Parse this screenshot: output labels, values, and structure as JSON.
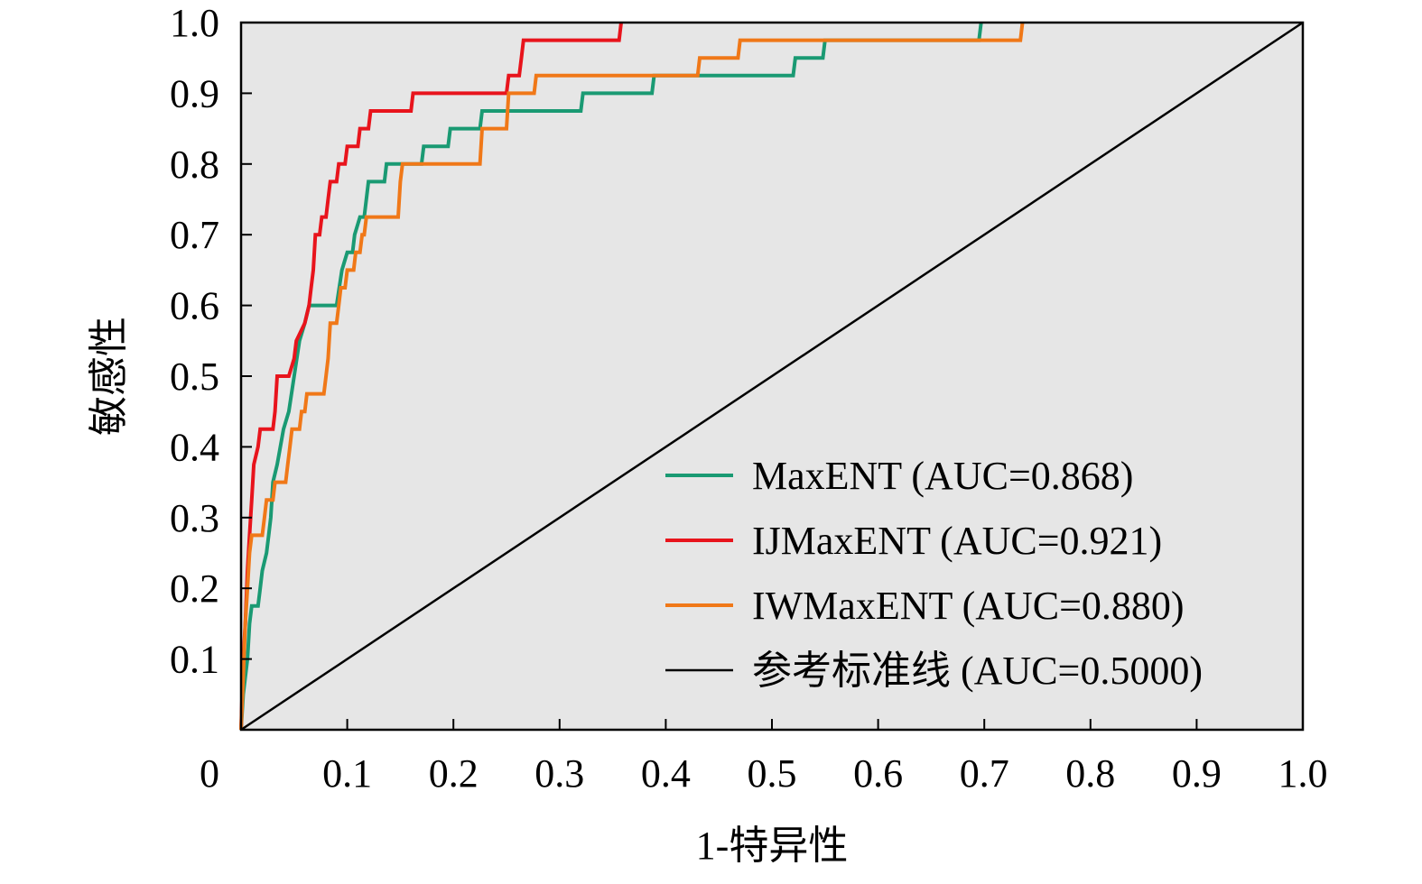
{
  "chart_data": {
    "type": "line",
    "title": "",
    "xlabel": "1-特异性",
    "ylabel": "敏感性",
    "xlim": [
      0,
      1.0
    ],
    "ylim": [
      0,
      1.0
    ],
    "plot_background": "#e6e6e6",
    "grid": false,
    "legend_position": "bottom-right",
    "x_ticks": [
      {
        "value": 0,
        "label": "0"
      },
      {
        "value": 0.1,
        "label": "0.1"
      },
      {
        "value": 0.2,
        "label": "0.2"
      },
      {
        "value": 0.3,
        "label": "0.3"
      },
      {
        "value": 0.4,
        "label": "0.4"
      },
      {
        "value": 0.5,
        "label": "0.5"
      },
      {
        "value": 0.6,
        "label": "0.6"
      },
      {
        "value": 0.7,
        "label": "0.7"
      },
      {
        "value": 0.8,
        "label": "0.8"
      },
      {
        "value": 0.9,
        "label": "0.9"
      },
      {
        "value": 1.0,
        "label": "1.0"
      }
    ],
    "y_ticks": [
      {
        "value": 0.1,
        "label": "0.1"
      },
      {
        "value": 0.2,
        "label": "0.2"
      },
      {
        "value": 0.3,
        "label": "0.3"
      },
      {
        "value": 0.4,
        "label": "0.4"
      },
      {
        "value": 0.5,
        "label": "0.5"
      },
      {
        "value": 0.6,
        "label": "0.6"
      },
      {
        "value": 0.7,
        "label": "0.7"
      },
      {
        "value": 0.8,
        "label": "0.8"
      },
      {
        "value": 0.9,
        "label": "0.9"
      },
      {
        "value": 1.0,
        "label": "1.0"
      }
    ],
    "series": [
      {
        "name": "MaxENT (AUC=0.868)",
        "color": "#1a9a73",
        "points": [
          [
            0,
            0
          ],
          [
            0.002,
            0.05
          ],
          [
            0.006,
            0.1
          ],
          [
            0.008,
            0.15
          ],
          [
            0.01,
            0.175
          ],
          [
            0.016,
            0.175
          ],
          [
            0.018,
            0.2
          ],
          [
            0.02,
            0.225
          ],
          [
            0.024,
            0.25
          ],
          [
            0.026,
            0.275
          ],
          [
            0.028,
            0.3
          ],
          [
            0.03,
            0.35
          ],
          [
            0.034,
            0.375
          ],
          [
            0.04,
            0.425
          ],
          [
            0.045,
            0.45
          ],
          [
            0.05,
            0.5
          ],
          [
            0.055,
            0.55
          ],
          [
            0.06,
            0.575
          ],
          [
            0.064,
            0.6
          ],
          [
            0.09,
            0.6
          ],
          [
            0.095,
            0.65
          ],
          [
            0.1,
            0.675
          ],
          [
            0.105,
            0.675
          ],
          [
            0.107,
            0.7
          ],
          [
            0.112,
            0.725
          ],
          [
            0.116,
            0.725
          ],
          [
            0.12,
            0.775
          ],
          [
            0.135,
            0.775
          ],
          [
            0.137,
            0.8
          ],
          [
            0.17,
            0.8
          ],
          [
            0.172,
            0.825
          ],
          [
            0.195,
            0.825
          ],
          [
            0.197,
            0.85
          ],
          [
            0.225,
            0.85
          ],
          [
            0.227,
            0.875
          ],
          [
            0.32,
            0.875
          ],
          [
            0.322,
            0.9
          ],
          [
            0.387,
            0.9
          ],
          [
            0.389,
            0.925
          ],
          [
            0.52,
            0.925
          ],
          [
            0.522,
            0.95
          ],
          [
            0.548,
            0.95
          ],
          [
            0.55,
            0.975
          ],
          [
            0.695,
            0.975
          ],
          [
            0.697,
            1.0
          ]
        ]
      },
      {
        "name": "IJMaxENT (AUC=0.921)",
        "color": "#e8141c",
        "points": [
          [
            0,
            0
          ],
          [
            0.002,
            0.1
          ],
          [
            0.004,
            0.15
          ],
          [
            0.006,
            0.225
          ],
          [
            0.008,
            0.275
          ],
          [
            0.01,
            0.325
          ],
          [
            0.012,
            0.375
          ],
          [
            0.016,
            0.4
          ],
          [
            0.018,
            0.425
          ],
          [
            0.03,
            0.425
          ],
          [
            0.032,
            0.45
          ],
          [
            0.034,
            0.5
          ],
          [
            0.045,
            0.5
          ],
          [
            0.05,
            0.525
          ],
          [
            0.052,
            0.55
          ],
          [
            0.06,
            0.575
          ],
          [
            0.064,
            0.6
          ],
          [
            0.066,
            0.625
          ],
          [
            0.068,
            0.65
          ],
          [
            0.07,
            0.7
          ],
          [
            0.074,
            0.7
          ],
          [
            0.076,
            0.725
          ],
          [
            0.08,
            0.725
          ],
          [
            0.082,
            0.75
          ],
          [
            0.084,
            0.775
          ],
          [
            0.09,
            0.775
          ],
          [
            0.092,
            0.8
          ],
          [
            0.098,
            0.8
          ],
          [
            0.1,
            0.825
          ],
          [
            0.11,
            0.825
          ],
          [
            0.112,
            0.85
          ],
          [
            0.12,
            0.85
          ],
          [
            0.122,
            0.875
          ],
          [
            0.16,
            0.875
          ],
          [
            0.162,
            0.9
          ],
          [
            0.25,
            0.9
          ],
          [
            0.252,
            0.925
          ],
          [
            0.262,
            0.925
          ],
          [
            0.264,
            0.95
          ],
          [
            0.266,
            0.975
          ],
          [
            0.356,
            0.975
          ],
          [
            0.358,
            1.0
          ]
        ]
      },
      {
        "name": "IWMaxENT (AUC=0.880)",
        "color": "#f07818",
        "points": [
          [
            0,
            0
          ],
          [
            0.002,
            0.075
          ],
          [
            0.004,
            0.15
          ],
          [
            0.006,
            0.2
          ],
          [
            0.008,
            0.25
          ],
          [
            0.01,
            0.275
          ],
          [
            0.02,
            0.275
          ],
          [
            0.022,
            0.3
          ],
          [
            0.024,
            0.325
          ],
          [
            0.03,
            0.325
          ],
          [
            0.032,
            0.35
          ],
          [
            0.042,
            0.35
          ],
          [
            0.044,
            0.375
          ],
          [
            0.046,
            0.4
          ],
          [
            0.048,
            0.425
          ],
          [
            0.055,
            0.425
          ],
          [
            0.057,
            0.45
          ],
          [
            0.06,
            0.45
          ],
          [
            0.062,
            0.475
          ],
          [
            0.078,
            0.475
          ],
          [
            0.08,
            0.5
          ],
          [
            0.082,
            0.525
          ],
          [
            0.084,
            0.575
          ],
          [
            0.09,
            0.575
          ],
          [
            0.092,
            0.6
          ],
          [
            0.094,
            0.625
          ],
          [
            0.098,
            0.625
          ],
          [
            0.1,
            0.65
          ],
          [
            0.106,
            0.65
          ],
          [
            0.108,
            0.675
          ],
          [
            0.112,
            0.675
          ],
          [
            0.114,
            0.7
          ],
          [
            0.116,
            0.7
          ],
          [
            0.118,
            0.725
          ],
          [
            0.148,
            0.725
          ],
          [
            0.15,
            0.775
          ],
          [
            0.152,
            0.8
          ],
          [
            0.225,
            0.8
          ],
          [
            0.227,
            0.85
          ],
          [
            0.25,
            0.85
          ],
          [
            0.252,
            0.9
          ],
          [
            0.276,
            0.9
          ],
          [
            0.278,
            0.925
          ],
          [
            0.43,
            0.925
          ],
          [
            0.432,
            0.95
          ],
          [
            0.468,
            0.95
          ],
          [
            0.47,
            0.975
          ],
          [
            0.734,
            0.975
          ],
          [
            0.736,
            1.0
          ]
        ]
      },
      {
        "name": "参考标准线 (AUC=0.5000)",
        "color": "#000000",
        "points": [
          [
            0,
            0
          ],
          [
            1.0,
            1.0
          ]
        ]
      }
    ]
  }
}
